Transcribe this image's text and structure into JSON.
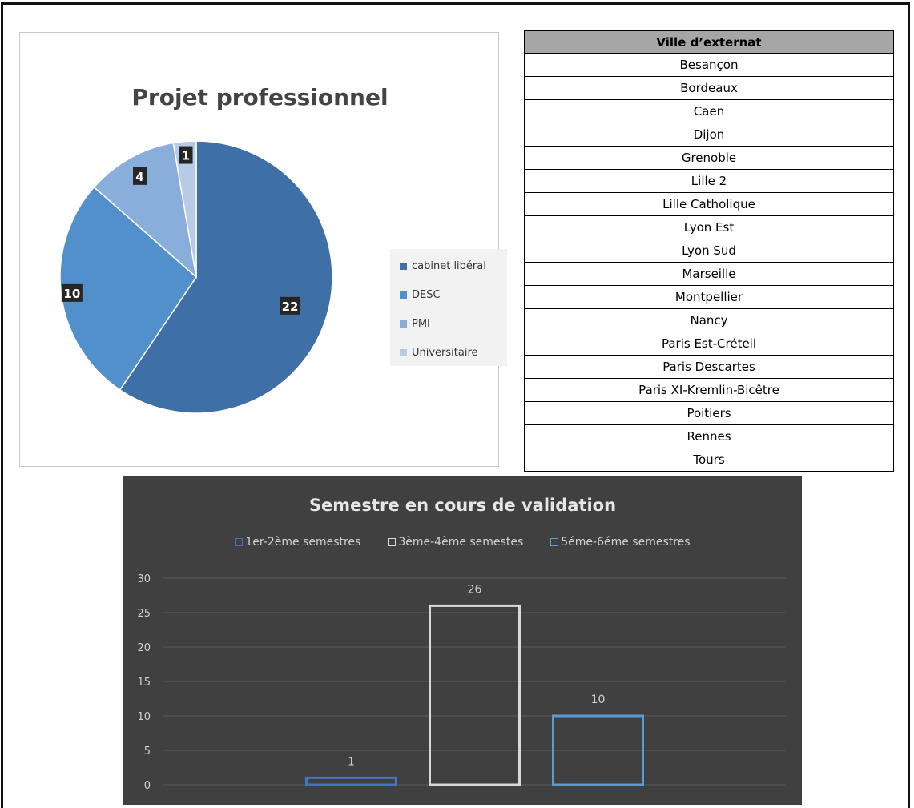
{
  "chart_data": [
    {
      "type": "pie",
      "title": "Projet professionnel",
      "categories": [
        "cabinet libéral",
        "DESC",
        "PMI",
        "Universitaire"
      ],
      "values": [
        22,
        10,
        4,
        1
      ],
      "colors": [
        "#3e6fa6",
        "#5290cb",
        "#8aaedb",
        "#b7cbe6"
      ],
      "legend_position": "right"
    },
    {
      "type": "bar",
      "title": "Semestre en cours de validation",
      "series": [
        {
          "name": "1er-2ème semestres",
          "values": [
            1
          ],
          "color": "#4472c4"
        },
        {
          "name": "3ème-4ème semestes",
          "values": [
            26
          ],
          "color": "#d9d9d9"
        },
        {
          "name": "5éme-6éme semestres",
          "values": [
            10
          ],
          "color": "#5b9bd5"
        }
      ],
      "ylim": [
        0,
        30
      ],
      "yticks": [
        "0",
        "5",
        "10",
        "15",
        "20",
        "25",
        "30"
      ],
      "legend_position": "top",
      "grid": true
    }
  ],
  "table": {
    "header": "Ville d’externat",
    "rows": [
      "Besançon",
      "Bordeaux",
      "Caen",
      "Dijon",
      "Grenoble",
      "Lille 2",
      "Lille Catholique",
      "Lyon Est",
      "Lyon Sud",
      "Marseille",
      "Montpellier",
      "Nancy",
      "Paris Est-Créteil",
      "Paris Descartes",
      "Paris XI-Kremlin-Bicêtre",
      "Poitiers",
      "Rennes",
      "Tours"
    ]
  }
}
